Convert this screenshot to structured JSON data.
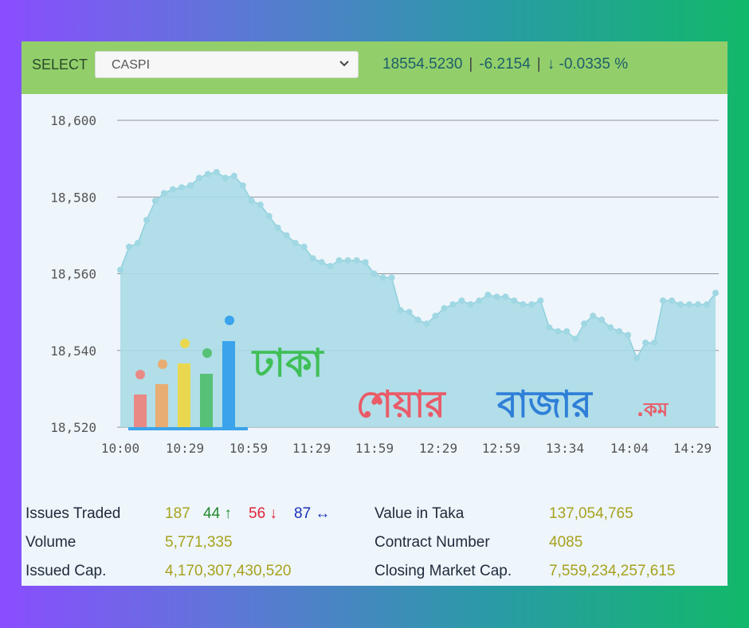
{
  "header": {
    "select_label": "SELECT",
    "selected_symbol": "CASPI",
    "price": "18554.5230",
    "change": "-6.2154",
    "change_pct": "-0.0335 %",
    "colors": {
      "bar": "#92cf6b",
      "quote_text": "#1e5e6a"
    }
  },
  "chart_data": {
    "type": "area",
    "ylim": [
      18520,
      18600
    ],
    "yticks": [
      "18,600",
      "18,580",
      "18,560",
      "18,540",
      "18,520"
    ],
    "ytick_values": [
      18600,
      18580,
      18560,
      18540,
      18520
    ],
    "xticks": [
      "10:00",
      "10:29",
      "10:59",
      "11:29",
      "11:59",
      "12:29",
      "12:59",
      "13:34",
      "14:04",
      "14:29"
    ],
    "grid": true,
    "colors": {
      "fill": "#aadbe6",
      "line": "#8fd0de",
      "marker": "#9fd7e3",
      "grid": "#8d939a"
    },
    "series": [
      {
        "values": [
          18561,
          18567,
          18568,
          18574,
          18579,
          18581,
          18582,
          18582.5,
          18583,
          18585,
          18586,
          18586.5,
          18585,
          18585.5,
          18583,
          18579,
          18578,
          18575,
          18572,
          18570,
          18568,
          18567,
          18564,
          18563,
          18562,
          18563.5,
          18563.5,
          18563.5,
          18563,
          18560,
          18559,
          18559,
          18550.5,
          18550,
          18548,
          18547,
          18549,
          18551,
          18552,
          18553,
          18552,
          18553,
          18554.5,
          18554,
          18554,
          18553,
          18552,
          18552,
          18553,
          18546,
          18545,
          18545,
          18543,
          18547,
          18549,
          18548,
          18546,
          18545,
          18544,
          18538,
          18542,
          18542,
          18553,
          18553,
          18552,
          18552,
          18552,
          18552,
          18555
        ]
      }
    ]
  },
  "watermark": {
    "word1": "ঢাকা",
    "word2": "শেয়ার",
    "word3": "বাজার",
    "suffix": ".কম",
    "colors": {
      "word1": "#3fbf57",
      "word2": "#ea5a68",
      "word3": "#2f7fd8",
      "suffix": "#ea5a68"
    }
  },
  "stats": {
    "issues_traded_label": "Issues Traded",
    "issues_traded_total": "187",
    "advances": "44",
    "declines": "56",
    "unchanged": "87",
    "volume_label": "Volume",
    "volume": "5,771,335",
    "issued_cap_label": "Issued Cap.",
    "issued_cap": "4,170,307,430,520",
    "value_taka_label": "Value in Taka",
    "value_taka": "137,054,765",
    "contract_label": "Contract Number",
    "contract": "4085",
    "closing_cap_label": "Closing Market Cap.",
    "closing_cap": "7,559,234,257,615"
  }
}
